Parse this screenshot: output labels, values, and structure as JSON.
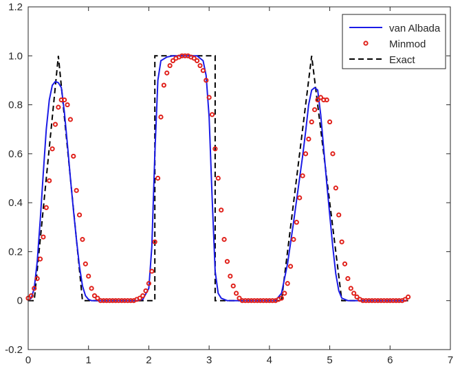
{
  "chart_data": {
    "type": "line",
    "title": "",
    "xlabel": "",
    "ylabel": "",
    "xlim": [
      0,
      7
    ],
    "ylim": [
      -0.2,
      1.2
    ],
    "xticks": [
      0,
      1,
      2,
      3,
      4,
      5,
      6,
      7
    ],
    "yticks": [
      -0.2,
      0,
      0.2,
      0.4,
      0.6,
      0.8,
      1.0,
      1.2
    ],
    "xtick_labels": [
      "0",
      "1",
      "2",
      "3",
      "4",
      "5",
      "6",
      "7"
    ],
    "ytick_labels": [
      "-0.2",
      "0",
      "0.2",
      "0.4",
      "0.6",
      "0.8",
      "1.0",
      "1.2"
    ],
    "grid": false,
    "legend_position": "top-right",
    "series": [
      {
        "name": "van Albada",
        "style": "solid line",
        "color": "#1a1ae6",
        "x": [
          0.0,
          0.05,
          0.1,
          0.15,
          0.2,
          0.25,
          0.3,
          0.35,
          0.4,
          0.45,
          0.5,
          0.55,
          0.6,
          0.65,
          0.7,
          0.75,
          0.8,
          0.85,
          0.9,
          0.95,
          1.0,
          1.05,
          1.1,
          1.2,
          1.4,
          1.6,
          1.8,
          1.9,
          2.0,
          2.05,
          2.1,
          2.15,
          2.2,
          2.3,
          2.4,
          2.5,
          2.6,
          2.7,
          2.8,
          2.9,
          2.95,
          3.0,
          3.05,
          3.1,
          3.15,
          3.2,
          3.3,
          3.5,
          3.8,
          4.1,
          4.2,
          4.3,
          4.4,
          4.5,
          4.55,
          4.6,
          4.65,
          4.7,
          4.75,
          4.8,
          4.85,
          4.9,
          4.95,
          5.0,
          5.05,
          5.1,
          5.15,
          5.2,
          5.3,
          5.5,
          5.8,
          6.1,
          6.28
        ],
        "y": [
          0.0,
          0.01,
          0.05,
          0.16,
          0.33,
          0.52,
          0.7,
          0.82,
          0.88,
          0.895,
          0.89,
          0.87,
          0.77,
          0.64,
          0.5,
          0.37,
          0.25,
          0.14,
          0.06,
          0.02,
          0.005,
          0.0,
          0.0,
          0.0,
          0.0,
          0.0,
          0.0,
          0.005,
          0.05,
          0.22,
          0.6,
          0.9,
          0.98,
          0.995,
          1.0,
          1.0,
          1.0,
          1.0,
          1.0,
          0.98,
          0.92,
          0.75,
          0.42,
          0.12,
          0.03,
          0.01,
          0.0,
          0.0,
          0.0,
          0.0,
          0.03,
          0.15,
          0.32,
          0.5,
          0.59,
          0.69,
          0.8,
          0.86,
          0.87,
          0.86,
          0.76,
          0.62,
          0.48,
          0.35,
          0.22,
          0.11,
          0.04,
          0.01,
          0.0,
          0.0,
          0.0,
          0.0,
          0.0
        ]
      },
      {
        "name": "Minmod",
        "style": "circle markers",
        "color": "#e0201a",
        "x": [
          0.0,
          0.05,
          0.1,
          0.15,
          0.2,
          0.25,
          0.3,
          0.35,
          0.4,
          0.45,
          0.5,
          0.55,
          0.6,
          0.65,
          0.7,
          0.75,
          0.8,
          0.85,
          0.9,
          0.95,
          1.0,
          1.05,
          1.1,
          1.15,
          1.2,
          1.25,
          1.3,
          1.35,
          1.4,
          1.45,
          1.5,
          1.55,
          1.6,
          1.65,
          1.7,
          1.75,
          1.8,
          1.85,
          1.9,
          1.95,
          2.0,
          2.05,
          2.1,
          2.15,
          2.2,
          2.25,
          2.3,
          2.35,
          2.4,
          2.45,
          2.5,
          2.55,
          2.6,
          2.65,
          2.7,
          2.75,
          2.8,
          2.85,
          2.9,
          2.95,
          3.0,
          3.05,
          3.1,
          3.15,
          3.2,
          3.25,
          3.3,
          3.35,
          3.4,
          3.45,
          3.5,
          3.55,
          3.6,
          3.65,
          3.7,
          3.75,
          3.8,
          3.85,
          3.9,
          3.95,
          4.0,
          4.05,
          4.1,
          4.15,
          4.2,
          4.25,
          4.3,
          4.35,
          4.4,
          4.45,
          4.5,
          4.55,
          4.6,
          4.65,
          4.7,
          4.75,
          4.8,
          4.85,
          4.9,
          4.95,
          5.0,
          5.05,
          5.1,
          5.15,
          5.2,
          5.25,
          5.3,
          5.35,
          5.4,
          5.45,
          5.5,
          5.55,
          5.6,
          5.65,
          5.7,
          5.75,
          5.8,
          5.85,
          5.9,
          5.95,
          6.0,
          6.05,
          6.1,
          6.15,
          6.2,
          6.25,
          6.3
        ],
        "y": [
          0.01,
          0.02,
          0.05,
          0.09,
          0.17,
          0.26,
          0.38,
          0.49,
          0.62,
          0.72,
          0.79,
          0.82,
          0.82,
          0.8,
          0.74,
          0.59,
          0.45,
          0.35,
          0.25,
          0.15,
          0.1,
          0.05,
          0.02,
          0.01,
          0.0,
          0.0,
          0.0,
          0.0,
          0.0,
          0.0,
          0.0,
          0.0,
          0.0,
          0.0,
          0.0,
          0.0,
          0.005,
          0.01,
          0.02,
          0.04,
          0.07,
          0.12,
          0.24,
          0.5,
          0.75,
          0.88,
          0.93,
          0.96,
          0.98,
          0.99,
          0.995,
          1.0,
          1.0,
          1.0,
          0.995,
          0.99,
          0.98,
          0.96,
          0.94,
          0.9,
          0.83,
          0.76,
          0.62,
          0.5,
          0.37,
          0.25,
          0.16,
          0.1,
          0.06,
          0.03,
          0.01,
          0.0,
          0.0,
          0.0,
          0.0,
          0.0,
          0.0,
          0.0,
          0.0,
          0.0,
          0.0,
          0.0,
          0.0,
          0.005,
          0.01,
          0.03,
          0.07,
          0.14,
          0.25,
          0.32,
          0.42,
          0.51,
          0.6,
          0.66,
          0.73,
          0.78,
          0.82,
          0.83,
          0.82,
          0.82,
          0.73,
          0.6,
          0.46,
          0.35,
          0.24,
          0.15,
          0.09,
          0.05,
          0.03,
          0.015,
          0.005,
          0.0,
          0.0,
          0.0,
          0.0,
          0.0,
          0.0,
          0.0,
          0.0,
          0.0,
          0.0,
          0.0,
          0.0,
          0.0,
          0.0,
          0.005,
          0.015
        ]
      },
      {
        "name": "Exact",
        "style": "dashed line",
        "color": "#000000",
        "x": [
          0.0,
          0.1,
          0.5,
          0.9,
          1.0,
          2.1,
          2.1,
          3.1,
          3.1,
          4.2,
          4.7,
          5.2,
          6.3
        ],
        "y": [
          0.0,
          0.0,
          1.0,
          0.0,
          0.0,
          0.0,
          1.0,
          1.0,
          0.0,
          0.0,
          1.0,
          0.0,
          0.0
        ]
      }
    ]
  }
}
